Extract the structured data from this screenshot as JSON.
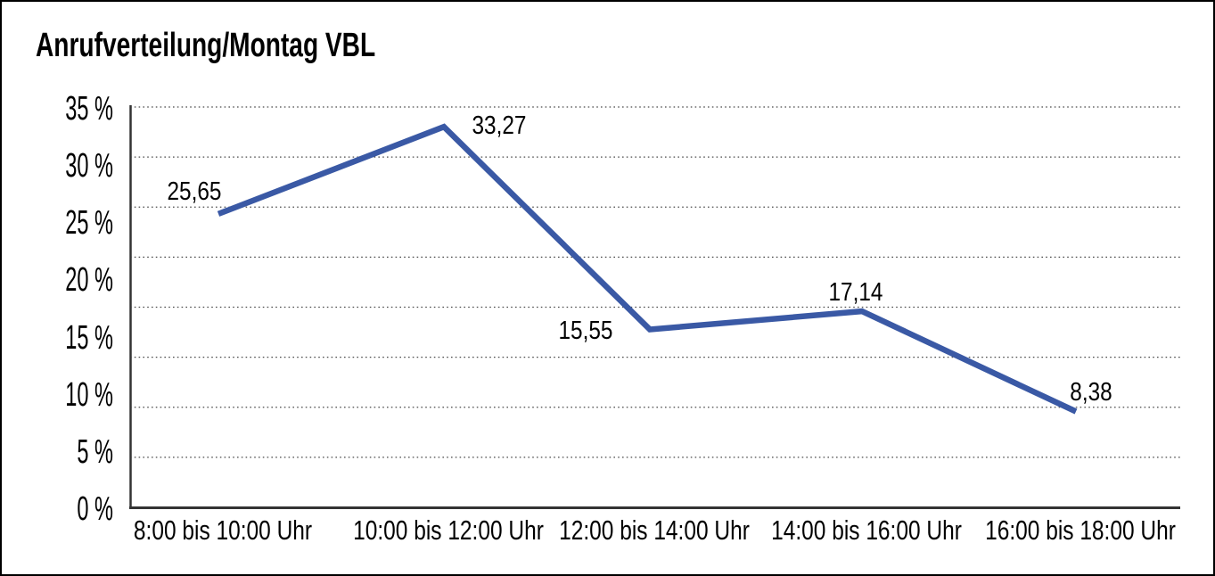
{
  "title": "Anrufverteilung/Montag VBL",
  "chart_data": {
    "type": "line",
    "title": "Anrufverteilung/Montag VBL",
    "categories": [
      "8:00 bis 10:00 Uhr",
      "10:00 bis 12:00 Uhr",
      "12:00 bis 14:00 Uhr",
      "14:00 bis 16:00 Uhr",
      "16:00 bis 18:00 Uhr"
    ],
    "series": [
      {
        "values": [
          25.65,
          33.27,
          15.55,
          17.14,
          8.38
        ],
        "point_labels": [
          "25,65",
          "33,27",
          "15,55",
          "17,14",
          "8,38"
        ],
        "color": "#3A59A5"
      }
    ],
    "y_ticks": {
      "values": [
        35,
        30,
        25,
        20,
        15,
        10,
        5,
        0
      ],
      "labels": [
        "35 %",
        "30 %",
        "25 %",
        "20 %",
        "15 %",
        "10 %",
        "5 %",
        "0 %"
      ]
    },
    "ylim": [
      0,
      35
    ],
    "xlabel": "",
    "ylabel": "",
    "grid": {
      "horizontal": true,
      "style": "dotted",
      "intervals": 8
    },
    "legend": "none",
    "axis_color": "#333333",
    "grid_color": "#4a4a4a",
    "background": "#ffffff"
  }
}
